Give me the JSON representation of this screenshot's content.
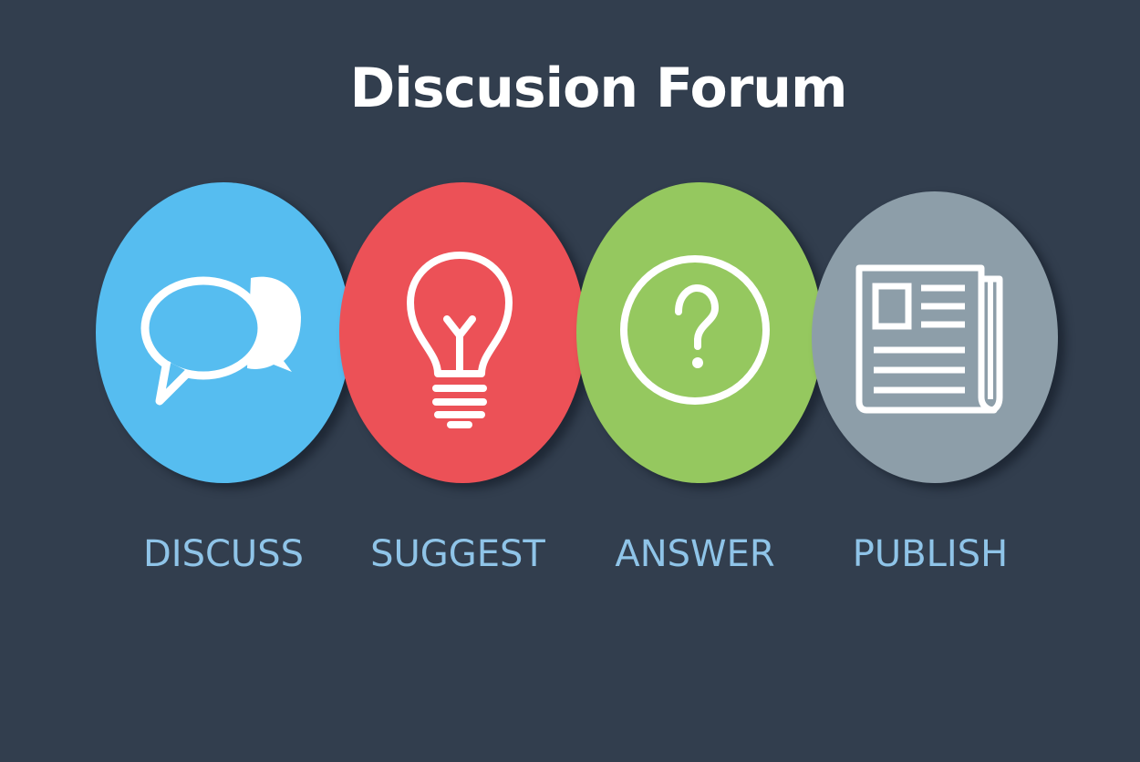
{
  "title": "Discusion Forum",
  "steps": [
    {
      "label": "DISCUSS",
      "icon": "speech-bubbles-icon",
      "color": "#56bdf0"
    },
    {
      "label": "SUGGEST",
      "icon": "lightbulb-icon",
      "color": "#ec5157"
    },
    {
      "label": "ANSWER",
      "icon": "question-mark-icon",
      "color": "#95c85f"
    },
    {
      "label": "PUBLISH",
      "icon": "newspaper-icon",
      "color": "#8d9ea9"
    }
  ],
  "colors": {
    "background": "#323e4e",
    "label_text": "#8fc4e8",
    "title_text": "#ffffff"
  }
}
